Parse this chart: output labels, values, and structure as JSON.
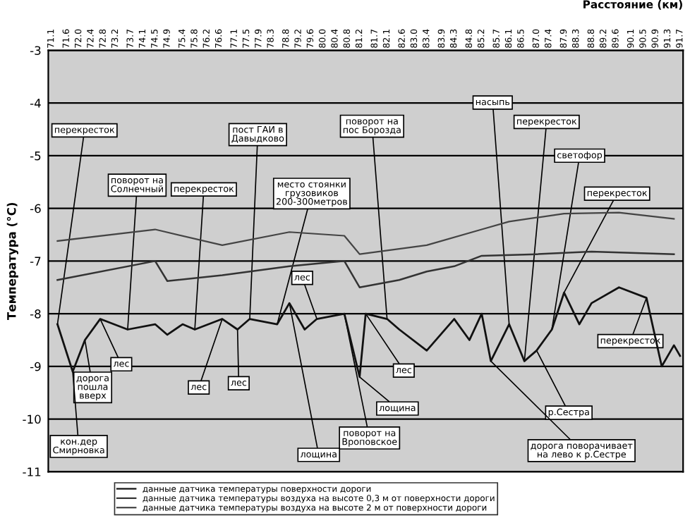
{
  "chart_data": {
    "type": "line",
    "xlabel": "Расстояние (км)",
    "ylabel": "Температура (°C)",
    "xlim": [
      71.0,
      91.8
    ],
    "ylim": [
      -11,
      -3
    ],
    "xticks": [
      71.1,
      71.6,
      {
        "value": 72,
        "label": "72.0"
      },
      72.4,
      72.8,
      73.2,
      73.7,
      74.1,
      74.5,
      74.9,
      75.4,
      75.8,
      76.2,
      76.6,
      77.1,
      77.5,
      77.9,
      78.3,
      78.8,
      79.2,
      79.6,
      {
        "value": 80,
        "label": "80.0"
      },
      80.4,
      80.8,
      81.2,
      81.7,
      82.1,
      82.6,
      {
        "value": 83,
        "label": "83.0"
      },
      83.4,
      83.9,
      84.3,
      84.8,
      85.2,
      85.7,
      86.1,
      86.5,
      {
        "value": 87,
        "label": "87.0"
      },
      87.4,
      87.9,
      88.3,
      88.8,
      89.2,
      89.6,
      90.1,
      90.5,
      90.9,
      91.3,
      91.7
    ],
    "yticks": [
      -3,
      -4,
      -5,
      -6,
      -7,
      -8,
      -9,
      -10,
      -11
    ],
    "grid": "y",
    "legend": "bottom",
    "marker": "none",
    "line_style": "solid",
    "series": [
      {
        "name": "данные датчика температуры поверхности дороги",
        "color": "#111111",
        "x": [
          71.3,
          71.8,
          72.2,
          72.7,
          73.6,
          74.5,
          74.9,
          75.4,
          75.8,
          76.7,
          77.2,
          77.6,
          78.5,
          78.9,
          79.4,
          79.8,
          80.7,
          81.2,
          81.4,
          82.1,
          82.5,
          83.4,
          84.3,
          84.8,
          85.2,
          85.5,
          86.1,
          86.6,
          87.0,
          87.5,
          87.9,
          88.4,
          88.6,
          88.8,
          89.7,
          90.6,
          91.1,
          91.5,
          91.7
        ],
        "values": [
          -8.2,
          -9.1,
          -8.5,
          -8.1,
          -8.3,
          -8.2,
          -8.4,
          -8.2,
          -8.3,
          -8.1,
          -8.3,
          -8.1,
          -8.2,
          -7.8,
          -8.3,
          -8.1,
          -8.0,
          -9.2,
          -8.0,
          -8.1,
          -8.3,
          -8.7,
          -8.1,
          -8.5,
          -8.0,
          -8.9,
          -8.2,
          -8.9,
          -8.7,
          -8.3,
          -7.6,
          -8.2,
          -8.0,
          -7.8,
          -7.5,
          -7.7,
          -9.0,
          -8.6,
          -8.8
        ]
      },
      {
        "name": "данные датчика температуры воздуха на высоте 0,3 м от поверхности дороги",
        "color": "#333333",
        "x": [
          71.3,
          74.5,
          74.9,
          76.7,
          78.9,
          80.7,
          81.2,
          82.5,
          83.4,
          84.3,
          85.2,
          87.0,
          88.8,
          91.5
        ],
        "values": [
          -7.36,
          -7.0,
          -7.38,
          -7.27,
          -7.1,
          -7.0,
          -7.5,
          -7.36,
          -7.2,
          -7.1,
          -6.9,
          -6.87,
          -6.82,
          -6.87
        ]
      },
      {
        "name": "данные датчика температуры воздуха на высоте 2 м от поверхности дороги",
        "color": "#444444",
        "x": [
          71.3,
          74.5,
          76.7,
          78.9,
          80.7,
          81.2,
          83.4,
          85.2,
          86.1,
          87.9,
          89.7,
          91.5
        ],
        "values": [
          -6.62,
          -6.4,
          -6.7,
          -6.45,
          -6.52,
          -6.87,
          -6.7,
          -6.4,
          -6.25,
          -6.1,
          -6.08,
          -6.2
        ]
      }
    ],
    "annotations": [
      {
        "text": "перекресток",
        "x": 71.3,
        "y": -8.2
      },
      {
        "text": "поворот на\nСолнечный",
        "x": 73.6,
        "y": -8.3
      },
      {
        "text": "перекресток",
        "x": 75.8,
        "y": -8.3
      },
      {
        "text": "пост ГАИ в\nДавыдково",
        "x": 77.6,
        "y": -8.1
      },
      {
        "text": "место стоянки\nгрузовиков\n200-300метров",
        "x": 78.5,
        "y": -8.2
      },
      {
        "text": "лес",
        "x": 79.8,
        "y": -8.1
      },
      {
        "text": "поворот на\nпос Борозда",
        "x": 82.1,
        "y": -8.1
      },
      {
        "text": "насыпь",
        "x": 86.1,
        "y": -8.2
      },
      {
        "text": "перекресток",
        "x": 86.6,
        "y": -8.9
      },
      {
        "text": "светофор",
        "x": 87.5,
        "y": -8.3
      },
      {
        "text": "перекресток",
        "x": 87.9,
        "y": -7.6
      },
      {
        "text": "перекресток",
        "x": 90.6,
        "y": -7.7
      },
      {
        "text": "лес",
        "x": 72.7,
        "y": -8.1
      },
      {
        "text": "дорога\nпошла\nвверх",
        "x": 72.2,
        "y": -8.5
      },
      {
        "text": "кон.дер\nСмирновка",
        "x": 71.8,
        "y": -9.1
      },
      {
        "text": "лес",
        "x": 76.7,
        "y": -8.1
      },
      {
        "text": "лес",
        "x": 77.2,
        "y": -8.3
      },
      {
        "text": "лес",
        "x": 81.4,
        "y": -8.0
      },
      {
        "text": "лощина",
        "x": 81.2,
        "y": -9.2
      },
      {
        "text": "поворот на\nВроповское",
        "x": 80.7,
        "y": -8.0
      },
      {
        "text": "лощина",
        "x": 78.9,
        "y": -7.8
      },
      {
        "text": "р.Сестра",
        "x": 87.0,
        "y": -8.7
      },
      {
        "text": "дорога поворачивает\nна лево к р.Сестре",
        "x": 85.5,
        "y": -8.9
      }
    ]
  }
}
